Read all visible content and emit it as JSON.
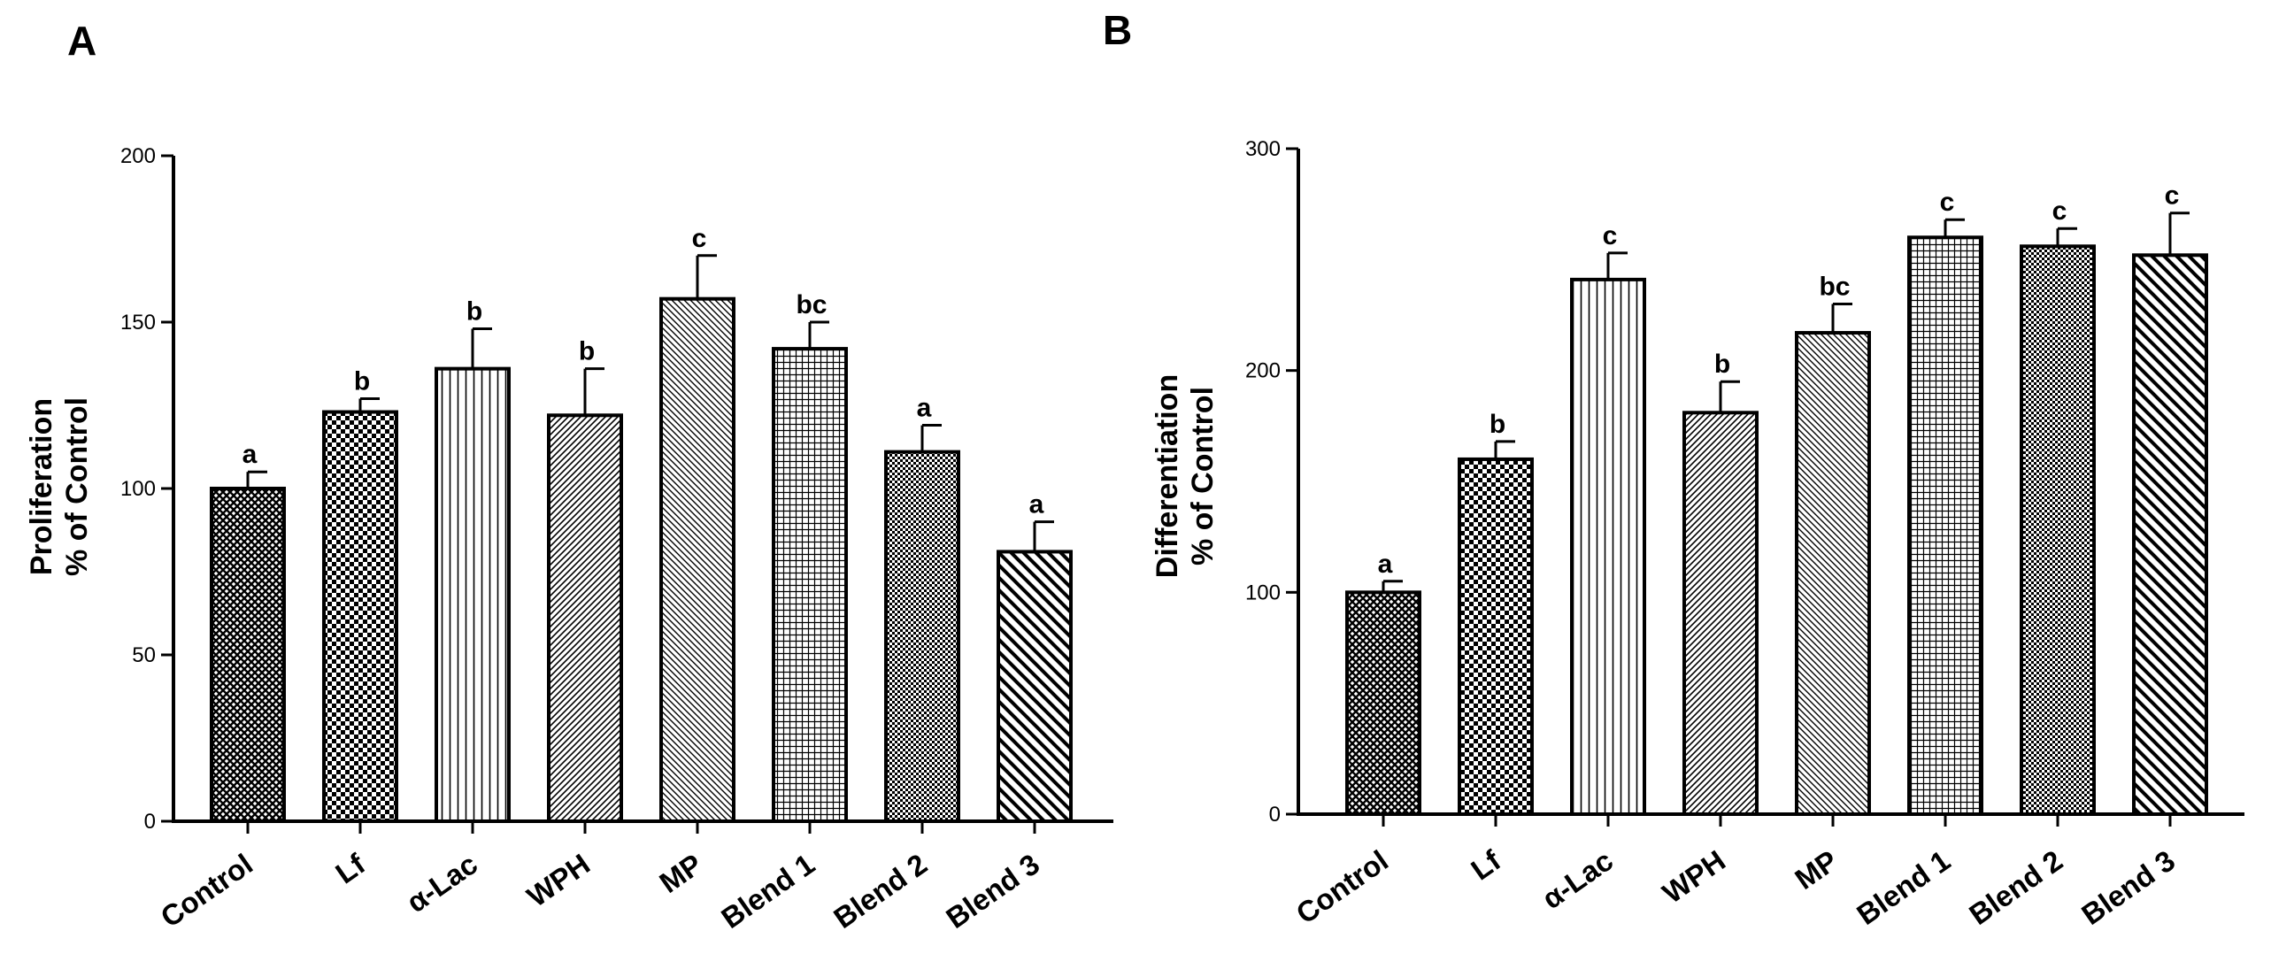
{
  "chart_data": [
    {
      "panel": "A",
      "type": "bar",
      "ylabel": [
        "Proliferation",
        "% of Control"
      ],
      "ylim": [
        0,
        200
      ],
      "yticks": [
        0,
        50,
        100,
        150,
        200
      ],
      "categories": [
        "Control",
        "Lf",
        "α-Lac",
        "WPH",
        "MP",
        "Blend 1",
        "Blend 2",
        "Blend 3"
      ],
      "values": [
        100,
        123,
        136,
        122,
        157,
        142,
        111,
        81
      ],
      "errors": [
        5,
        4,
        12,
        14,
        13,
        8,
        8,
        9
      ],
      "significance": [
        "a",
        "b",
        "b",
        "b",
        "c",
        "bc",
        "a",
        "a"
      ]
    },
    {
      "panel": "B",
      "type": "bar",
      "ylabel": [
        "Differentiation",
        "% of Control"
      ],
      "ylim": [
        0,
        300
      ],
      "yticks": [
        0,
        100,
        200,
        300
      ],
      "categories": [
        "Control",
        "Lf",
        "α-Lac",
        "WPH",
        "MP",
        "Blend 1",
        "Blend 2",
        "Blend 3"
      ],
      "values": [
        100,
        160,
        241,
        181,
        217,
        260,
        256,
        252
      ],
      "errors": [
        5,
        8,
        12,
        14,
        13,
        8,
        8,
        19
      ],
      "significance": [
        "a",
        "b",
        "c",
        "b",
        "bc",
        "c",
        "c",
        "c"
      ]
    }
  ],
  "patterns": [
    "diamond",
    "checker",
    "vlines",
    "diag-right",
    "diag-left",
    "grid",
    "finecheck",
    "bigdiag"
  ]
}
